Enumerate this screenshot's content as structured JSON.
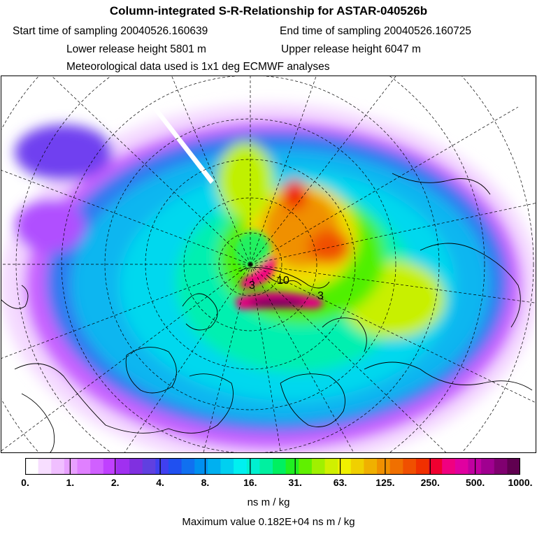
{
  "header": {
    "title": "Column-integrated S-R-Relationship for ASTAR-040526b",
    "start_time": "Start time of sampling 20040526.160639",
    "end_time": "End time of sampling 20040526.160725",
    "lower_height": "Lower release height 5801 m",
    "upper_height": "Upper release height 6047 m",
    "met_data": "Meteorological data used is 1x1 deg ECMWF analyses"
  },
  "map": {
    "projection": "north polar stereographic",
    "background_color": "#FFFFFF",
    "land_outline_color": "#000000",
    "graticule_color": "#000000",
    "contour_labels": [
      "3",
      "10",
      "3"
    ]
  },
  "colorbar": {
    "colors": [
      "#FFFFFF",
      "#F7DEFF",
      "#F0BFFF",
      "#E8A0FF",
      "#E080FF",
      "#D060FF",
      "#C040FF",
      "#A030F0",
      "#8030E0",
      "#6040E0",
      "#4040F0",
      "#2050F0",
      "#1070F0",
      "#0090F0",
      "#00B0F0",
      "#00D0F0",
      "#00F0F0",
      "#00F0D0",
      "#00F0A0",
      "#00F060",
      "#20F020",
      "#60F000",
      "#A0F000",
      "#D0F000",
      "#F0F000",
      "#F0D000",
      "#F0B000",
      "#F09000",
      "#F07000",
      "#F05000",
      "#F03000",
      "#F00030",
      "#F00080",
      "#E000A0",
      "#C000A0",
      "#A00090",
      "#800070",
      "#600050"
    ],
    "ticks": [
      "0.",
      "1.",
      "2.",
      "4.",
      "8.",
      "16.",
      "31.",
      "63.",
      "125.",
      "250.",
      "500.",
      "1000."
    ],
    "units": "ns m / kg"
  },
  "footer": {
    "max_value": "Maximum value  0.182E+04 ns m / kg"
  }
}
